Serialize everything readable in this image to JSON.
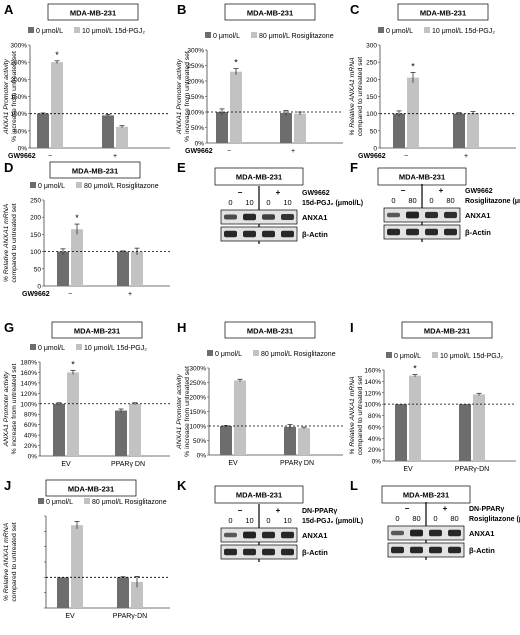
{
  "cell_line": "MDA-MB-231",
  "colors": {
    "dark": "#6d6d6d",
    "light": "#c2c2c2",
    "band": "#1c1c1c",
    "blot_bg": "#e3e3e3"
  },
  "chart_data": [
    {
      "panel": "A",
      "type": "bar",
      "cell_line": "MDA-MB-231",
      "legend": [
        "0 μmol/L",
        "10 μmol/L 15d-PGJ₂"
      ],
      "ylabel": [
        "ANXA1 Promoter activity",
        "% increase from untreated set"
      ],
      "yticks": [
        "0%",
        "50%",
        "100%",
        "150%",
        "200%",
        "250%",
        "300%"
      ],
      "ylim": [
        0,
        300
      ],
      "xlabel": "GW9662",
      "categories": [
        "−",
        "+"
      ],
      "series": [
        {
          "name": "0 μmol/L",
          "values": [
            100,
            95
          ],
          "errors": [
            2,
            3
          ]
        },
        {
          "name": "10 μmol/L 15d-PGJ₂",
          "values": [
            250,
            62
          ],
          "errors": [
            4,
            3
          ]
        }
      ],
      "star": [
        true,
        false
      ],
      "ref_line": 100
    },
    {
      "panel": "B",
      "type": "bar",
      "cell_line": "MDA-MB-231",
      "legend": [
        "0 μmol/L",
        "80 μmol/L Rosiglitazone"
      ],
      "ylabel": [
        "ANXA1 Promoter activity",
        "% increase from untreated set"
      ],
      "yticks": [
        "0%",
        "50%",
        "100%",
        "150%",
        "200%",
        "250%",
        "300%"
      ],
      "ylim": [
        0,
        300
      ],
      "xlabel": "GW9662",
      "categories": [
        "−",
        "+"
      ],
      "series": [
        {
          "name": "0 μmol/L",
          "values": [
            100,
            97
          ],
          "errors": [
            10,
            8
          ]
        },
        {
          "name": "80 μmol/L Rosiglitazone",
          "values": [
            230,
            95
          ],
          "errors": [
            10,
            5
          ]
        }
      ],
      "star": [
        true,
        false
      ],
      "ref_line": 100
    },
    {
      "panel": "C",
      "type": "bar",
      "cell_line": "MDA-MB-231",
      "legend": [
        "0 μmol/L",
        "10 μmol/L 15d-PGJ₂"
      ],
      "ylabel": [
        "% Relative ANXA1 mRNA",
        "compared to untreated set"
      ],
      "yticks": [
        "0",
        "50",
        "100",
        "150",
        "200",
        "250",
        "300"
      ],
      "ylim": [
        0,
        300
      ],
      "xlabel": "GW9662",
      "categories": [
        "−",
        "+"
      ],
      "series": [
        {
          "name": "0 μmol/L",
          "values": [
            100,
            100
          ],
          "errors": [
            8,
            3
          ]
        },
        {
          "name": "10 μmol/L 15d-PGJ₂",
          "values": [
            205,
            102
          ],
          "errors": [
            15,
            4
          ]
        }
      ],
      "star": [
        true,
        false
      ],
      "ref_line": 100
    },
    {
      "panel": "D",
      "type": "bar",
      "cell_line": "MDA-MB-231",
      "legend": [
        "0 μmol/L",
        "80 μmol/L Rosiglitazone"
      ],
      "ylabel": [
        "% Relative ANXA1 mRNA",
        "compared to untreated set"
      ],
      "yticks": [
        "0",
        "50",
        "100",
        "150",
        "200",
        "250"
      ],
      "ylim": [
        0,
        250
      ],
      "xlabel": "GW9662",
      "categories": [
        "−",
        "+"
      ],
      "series": [
        {
          "name": "0 μmol/L",
          "values": [
            100,
            100
          ],
          "errors": [
            8,
            2
          ]
        },
        {
          "name": "80 μmol/L Rosiglitazone",
          "values": [
            165,
            100
          ],
          "errors": [
            15,
            10
          ]
        }
      ],
      "star": [
        true,
        false
      ],
      "ref_line": 100
    },
    {
      "panel": "G",
      "type": "bar",
      "cell_line": "MDA-MB-231",
      "legend": [
        "0 μmol/L",
        "10 μmol/L 15d-PGJ₂"
      ],
      "ylabel": [
        "ANXA1 Promoter activity",
        "% increase from untreated set"
      ],
      "yticks": [
        "0%",
        "20%",
        "40%",
        "60%",
        "80%",
        "100%",
        "120%",
        "140%",
        "160%",
        "180%"
      ],
      "ylim": [
        0,
        180
      ],
      "xlabel": "",
      "categories": [
        "EV",
        "PPARγ DN"
      ],
      "series": [
        {
          "name": "0 μmol/L",
          "values": [
            100,
            87
          ],
          "errors": [
            2,
            3
          ]
        },
        {
          "name": "10 μmol/L 15d-PGJ₂",
          "values": [
            160,
            100
          ],
          "errors": [
            4,
            2
          ]
        }
      ],
      "star": [
        true,
        false
      ],
      "ref_line": 100
    },
    {
      "panel": "H",
      "type": "bar",
      "cell_line": "MDA-MB-231",
      "legend": [
        "0 μmol/L",
        "80 μmol/L Rosiglitazone"
      ],
      "ylabel": [
        "ANXA1 Promoter activity",
        "% increase from untreated set"
      ],
      "yticks": [
        "0%",
        "50%",
        "100%",
        "150%",
        "200%",
        "250%",
        "300%"
      ],
      "ylim": [
        0,
        300
      ],
      "xlabel": "",
      "categories": [
        "EV",
        "PPARγ DN"
      ],
      "series": [
        {
          "name": "0 μmol/L",
          "values": [
            100,
            97
          ],
          "errors": [
            2,
            8
          ]
        },
        {
          "name": "80 μmol/L Rosiglitazone",
          "values": [
            257,
            93
          ],
          "errors": [
            4,
            3
          ]
        }
      ],
      "star": [
        false,
        false
      ],
      "ref_line": 100
    },
    {
      "panel": "I",
      "type": "bar",
      "cell_line": "MDA-MB-231",
      "legend": [
        "0 μmol/L",
        "10 μmol/L 15d-PGJ₂"
      ],
      "ylabel": [
        "% Relative ANXA1 mRNA",
        "compared to untreated set"
      ],
      "yticks": [
        "0%",
        "20%",
        "40%",
        "60%",
        "80%",
        "100%",
        "120%",
        "140%",
        "160%"
      ],
      "ylim": [
        0,
        160
      ],
      "xlabel": "",
      "categories": [
        "EV",
        "PPARγ-DN"
      ],
      "series": [
        {
          "name": "0 μmol/L",
          "values": [
            100,
            100
          ],
          "errors": [
            0,
            0
          ]
        },
        {
          "name": "10 μmol/L 15d-PGJ₂",
          "values": [
            150,
            117
          ],
          "errors": [
            2,
            2
          ]
        }
      ],
      "star": [
        true,
        false
      ],
      "ref_line": 100
    },
    {
      "panel": "J",
      "type": "bar",
      "cell_line": "MDA-MB-231",
      "legend": [
        "0 μmol/L",
        "80 μmol/L Rosiglitazone"
      ],
      "ylabel": [
        "% Relative ANXA1 mRNA",
        "compared to untreated set"
      ],
      "yticks": [],
      "ylim": [
        0,
        300
      ],
      "xlabel": "",
      "categories": [
        "EV",
        "PPARγ-DN"
      ],
      "series": [
        {
          "name": "0 μmol/L",
          "values": [
            100,
            100
          ],
          "errors": [
            0,
            2
          ]
        },
        {
          "name": "80 μmol/L Rosiglitazone",
          "values": [
            270,
            85
          ],
          "errors": [
            12,
            18
          ]
        }
      ],
      "star": [
        false,
        false
      ],
      "ref_line": 100
    }
  ],
  "blots": [
    {
      "panel": "E",
      "cell_line": "MDA-MB-231",
      "treatment_label": "GW9662",
      "signs": [
        "−",
        "+"
      ],
      "dose_values": [
        "0",
        "10",
        "0",
        "10"
      ],
      "dose_label": "15d-PGJ₂ (μmol/L)",
      "rows": [
        "ANXA1",
        "β-Actin"
      ],
      "intensity": [
        [
          0.6,
          0.9,
          0.7,
          0.8
        ],
        [
          0.9,
          0.9,
          0.9,
          0.9
        ]
      ]
    },
    {
      "panel": "F",
      "cell_line": "MDA-MB-231",
      "treatment_label": "GW9662",
      "signs": [
        "−",
        "+"
      ],
      "dose_values": [
        "0",
        "80",
        "0",
        "80"
      ],
      "dose_label": "Rosiglitazone (μmol/L)",
      "rows": [
        "ANXA1",
        "β-Actin"
      ],
      "intensity": [
        [
          0.5,
          0.95,
          0.85,
          0.85
        ],
        [
          0.9,
          0.9,
          0.9,
          0.9
        ]
      ]
    },
    {
      "panel": "K",
      "cell_line": "MDA-MB-231",
      "treatment_label": "DN-PPARγ",
      "signs": [
        "−",
        "+"
      ],
      "dose_values": [
        "0",
        "10",
        "0",
        "10"
      ],
      "dose_label": "15d-PGJ₂ (μmol/L)",
      "rows": [
        "ANXA1",
        "β-Actin"
      ],
      "intensity": [
        [
          0.5,
          0.95,
          0.9,
          0.9
        ],
        [
          0.9,
          0.9,
          0.9,
          0.9
        ]
      ]
    },
    {
      "panel": "L",
      "cell_line": "MDA-MB-231",
      "treatment_label": "DN-PPARγ",
      "signs": [
        "−",
        "+"
      ],
      "dose_values": [
        "0",
        "80",
        "0",
        "80"
      ],
      "dose_label": "Rosiglitazone (μmol/L)",
      "rows": [
        "ANXA1",
        "β-Actin"
      ],
      "intensity": [
        [
          0.5,
          0.95,
          0.9,
          0.9
        ],
        [
          0.9,
          0.9,
          0.9,
          0.9
        ]
      ]
    }
  ]
}
